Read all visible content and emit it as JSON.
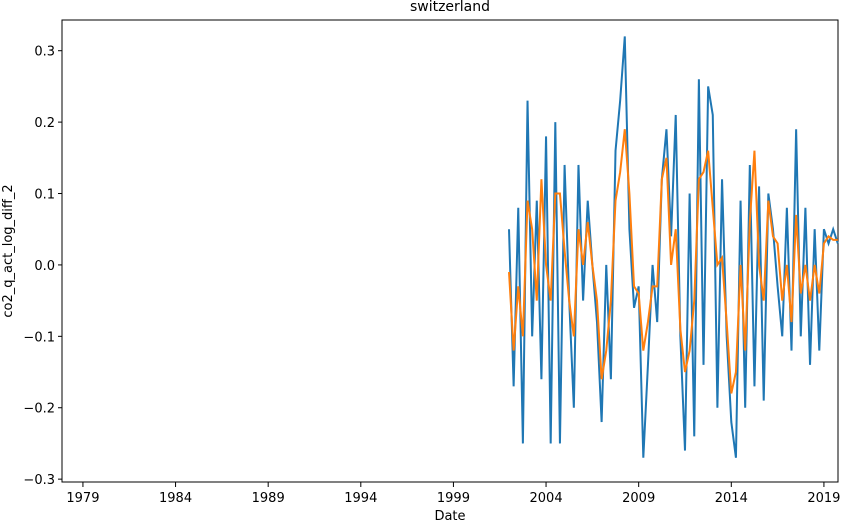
{
  "chart_data": {
    "type": "line",
    "title": "switzerland",
    "x_label": "Date",
    "y_label": "co2_q_act_log_diff_2",
    "x": [
      2002.0,
      2002.25,
      2002.5,
      2002.75,
      2003.0,
      2003.25,
      2003.5,
      2003.75,
      2004.0,
      2004.25,
      2004.5,
      2004.75,
      2005.0,
      2005.25,
      2005.5,
      2005.75,
      2006.0,
      2006.25,
      2006.5,
      2006.75,
      2007.0,
      2007.25,
      2007.5,
      2007.75,
      2008.0,
      2008.25,
      2008.5,
      2008.75,
      2009.0,
      2009.25,
      2009.5,
      2009.75,
      2010.0,
      2010.25,
      2010.5,
      2010.75,
      2011.0,
      2011.25,
      2011.5,
      2011.75,
      2012.0,
      2012.25,
      2012.5,
      2012.75,
      2013.0,
      2013.25,
      2013.5,
      2013.75,
      2014.0,
      2014.25,
      2014.5,
      2014.75,
      2015.0,
      2015.25,
      2015.5,
      2015.75,
      2016.0,
      2016.25,
      2016.5,
      2016.75,
      2017.0,
      2017.25,
      2017.5,
      2017.75,
      2018.0,
      2018.25,
      2018.5,
      2018.75,
      2019.0,
      2019.25,
      2019.5,
      2019.75
    ],
    "series": [
      {
        "color": "#1f77b4",
        "values": [
          0.05,
          -0.17,
          0.08,
          -0.25,
          0.23,
          -0.1,
          0.09,
          -0.16,
          0.18,
          -0.25,
          0.2,
          -0.25,
          0.14,
          -0.05,
          -0.2,
          0.14,
          -0.05,
          0.09,
          0.0,
          -0.08,
          -0.22,
          0.0,
          -0.16,
          0.16,
          0.23,
          0.32,
          0.05,
          -0.06,
          -0.03,
          -0.27,
          -0.14,
          0.0,
          -0.08,
          0.12,
          0.19,
          0.04,
          0.21,
          -0.1,
          -0.26,
          0.1,
          -0.24,
          0.26,
          -0.14,
          0.25,
          0.21,
          -0.2,
          0.12,
          -0.1,
          -0.22,
          -0.27,
          0.09,
          -0.2,
          0.14,
          -0.17,
          0.11,
          -0.19,
          0.1,
          0.05,
          -0.03,
          -0.1,
          0.08,
          -0.12,
          0.19,
          -0.1,
          0.08,
          -0.14,
          0.05,
          -0.12,
          0.05,
          0.03,
          0.05,
          0.03
        ]
      },
      {
        "color": "#ff7f0e",
        "values": [
          -0.01,
          -0.12,
          -0.03,
          -0.1,
          0.09,
          0.05,
          -0.05,
          0.12,
          0.0,
          -0.05,
          0.1,
          0.1,
          0.02,
          -0.05,
          -0.1,
          0.05,
          0.0,
          0.06,
          0.0,
          -0.05,
          -0.16,
          -0.12,
          -0.05,
          0.09,
          0.13,
          0.19,
          0.1,
          -0.03,
          -0.04,
          -0.12,
          -0.08,
          -0.03,
          -0.03,
          0.12,
          0.15,
          0.0,
          0.05,
          -0.09,
          -0.15,
          -0.12,
          -0.05,
          0.12,
          0.13,
          0.16,
          0.08,
          0.0,
          0.01,
          -0.08,
          -0.18,
          -0.15,
          0.0,
          -0.12,
          0.06,
          0.16,
          0.0,
          -0.05,
          0.09,
          0.04,
          0.03,
          -0.05,
          0.0,
          -0.08,
          0.07,
          -0.04,
          0.0,
          -0.05,
          0.0,
          -0.04,
          0.03,
          0.04,
          0.035,
          0.035
        ]
      }
    ],
    "xlim": [
      1977.87,
      2019.76
    ],
    "xticks": [
      1979,
      1984,
      1989,
      1994,
      1999,
      2004,
      2009,
      2014,
      2019
    ],
    "ylim": [
      -0.304,
      0.343
    ],
    "yticks": [
      {
        "value": -0.3,
        "label": "−0.3"
      },
      {
        "value": -0.2,
        "label": "−0.2"
      },
      {
        "value": -0.1,
        "label": "−0.1"
      },
      {
        "value": 0,
        "label": "0.0"
      },
      0.1,
      0.2,
      0.3
    ]
  }
}
